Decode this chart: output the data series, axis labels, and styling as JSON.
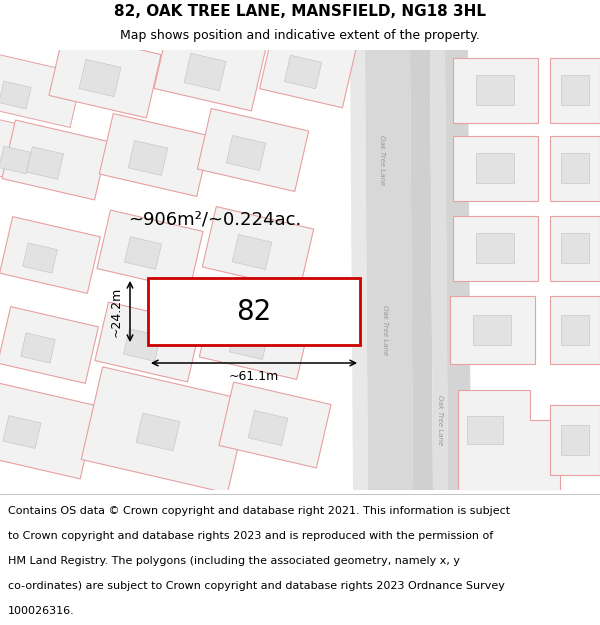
{
  "title": "82, OAK TREE LANE, MANSFIELD, NG18 3HL",
  "subtitle": "Map shows position and indicative extent of the property.",
  "footer_lines": [
    "Contains OS data © Crown copyright and database right 2021. This information is subject",
    "to Crown copyright and database rights 2023 and is reproduced with the permission of",
    "HM Land Registry. The polygons (including the associated geometry, namely x, y",
    "co-ordinates) are subject to Crown copyright and database rights 2023 Ordnance Survey",
    "100026316."
  ],
  "map_bg": "#f7f7f7",
  "plot_outline": "#cc0000",
  "plot_fill": "#ffffff",
  "area_text": "~906m²/~0.224ac.",
  "width_text": "~61.1m",
  "height_text": "~24.2m",
  "label_text": "82",
  "road_label": "Oak Tree Lane",
  "title_fontsize": 11,
  "subtitle_fontsize": 9,
  "footer_fontsize": 8.0,
  "bld_fill": "#e2e2e2",
  "bld_stroke": "#e8a0a0",
  "road_fill": "#d8d8d8",
  "road_stripe": "#c0c0c0"
}
